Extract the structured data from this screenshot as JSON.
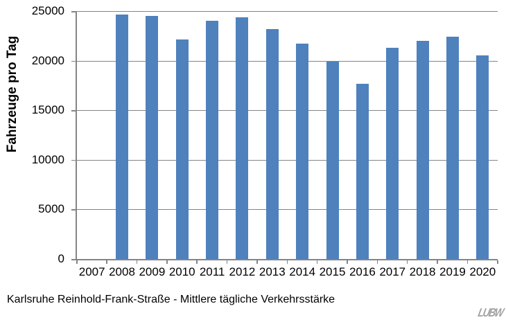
{
  "chart_data": {
    "type": "bar",
    "title": "",
    "ylabel": "Fahrzeuge pro Tag",
    "xlabel": "",
    "categories": [
      "2007",
      "2008",
      "2009",
      "2010",
      "2011",
      "2012",
      "2013",
      "2014",
      "2015",
      "2016",
      "2017",
      "2018",
      "2019",
      "2020"
    ],
    "values": [
      null,
      24650,
      24500,
      22150,
      24000,
      24400,
      23200,
      21700,
      19900,
      17650,
      21300,
      22000,
      22400,
      20500
    ],
    "ylim": [
      0,
      25000
    ],
    "yticks": [
      0,
      5000,
      10000,
      15000,
      20000,
      25000
    ],
    "grid": true,
    "legend_position": "none",
    "bar_color": "#4f81bd",
    "axis_color": "#848484"
  },
  "caption": "Karlsruhe Reinhold-Frank-Straße - Mittlere tägliche Verkehrsstärke",
  "logo": {
    "text": "LUBW"
  }
}
